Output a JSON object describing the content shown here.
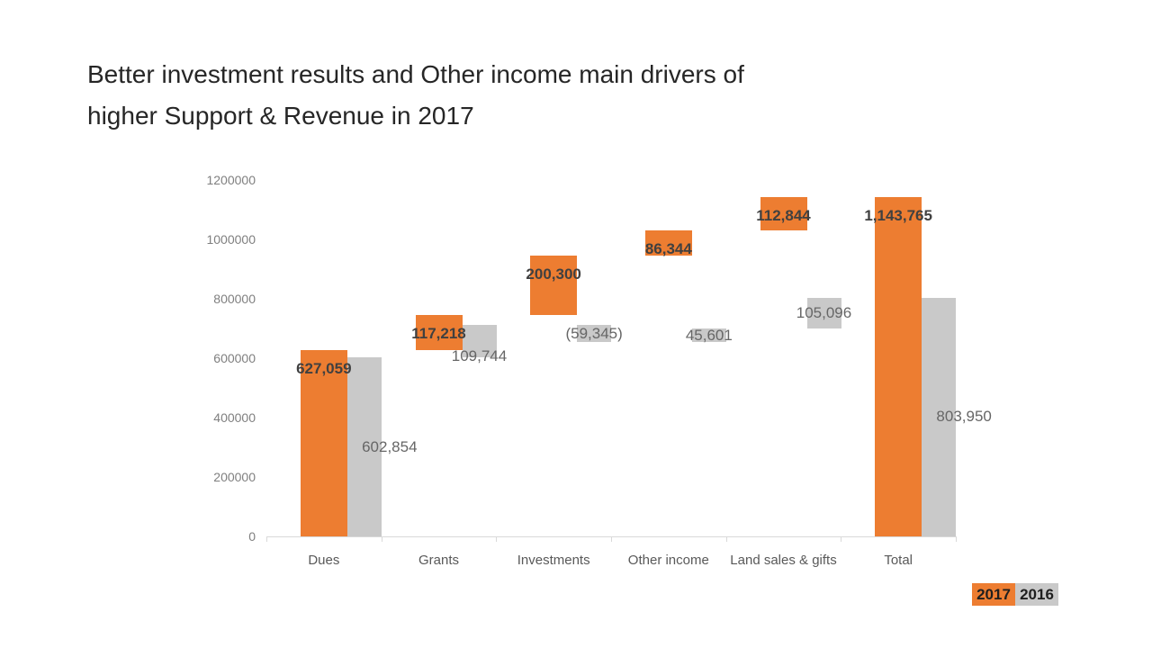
{
  "chart_data": {
    "type": "bar",
    "subtype": "waterfall",
    "title": "Better investment results and Other income main drivers of\nhigher Support & Revenue in 2017",
    "categories": [
      "Dues",
      "Grants",
      "Investments",
      "Other income",
      "Land sales & gifts",
      "Total"
    ],
    "series": [
      {
        "name": "2017",
        "color": "#ED7D31",
        "values": [
          627059,
          117218,
          200300,
          86344,
          112844,
          1143765
        ],
        "labels": [
          "627,059",
          "117,218",
          "200,300",
          "86,344",
          "112,844",
          "1,143,765"
        ]
      },
      {
        "name": "2016",
        "color": "#C9C9C9",
        "values": [
          602854,
          109744,
          -59345,
          45601,
          105096,
          803950
        ],
        "labels": [
          "602,854",
          "109,744",
          "(59,345)",
          "45,601",
          "105,096",
          "803,950"
        ]
      }
    ],
    "total_category_index": 5,
    "y_axis": {
      "min": 0,
      "max": 1200000,
      "step": 200000,
      "tick_labels": [
        "0",
        "200000",
        "400000",
        "600000",
        "800000",
        "1000000",
        "1200000"
      ]
    },
    "xlabel": "",
    "ylabel": "",
    "gridlines": false,
    "legend": {
      "position": "bottom-right",
      "items": [
        {
          "label": "2017",
          "color": "#ED7D31"
        },
        {
          "label": "2016",
          "color": "#C9C9C9"
        }
      ]
    }
  }
}
